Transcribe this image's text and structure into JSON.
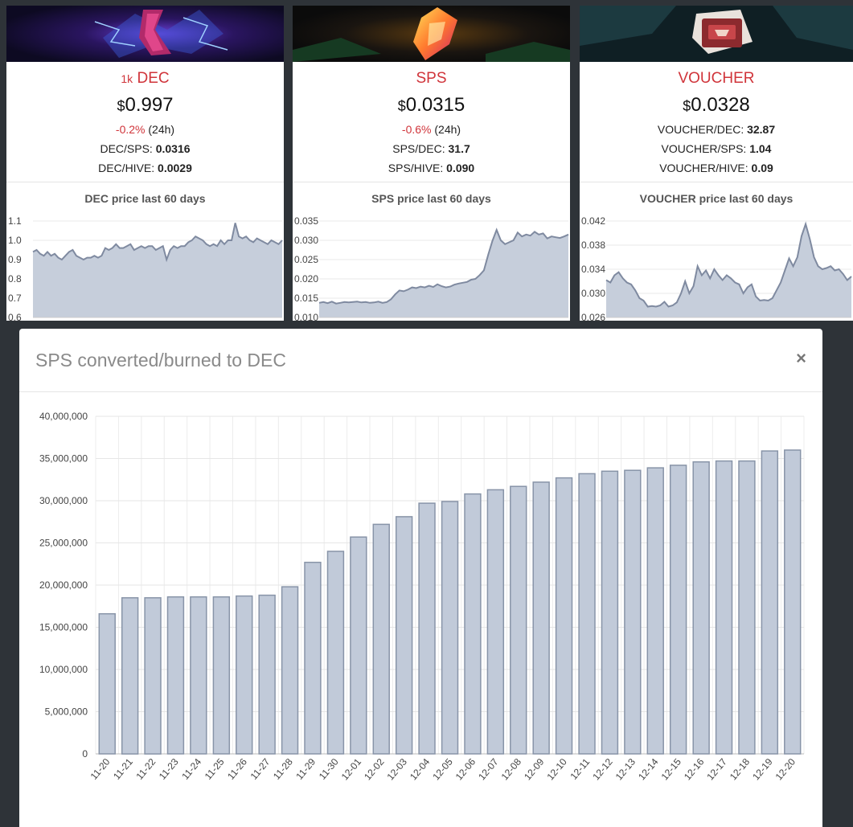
{
  "cards": [
    {
      "prefix": "1k",
      "name": "DEC",
      "currency": "$",
      "price": "0.997",
      "change": "-0.2",
      "change_suffix": "%",
      "period": " (24h)",
      "rows": [
        {
          "label": "DEC/SPS: ",
          "value": "0.0316"
        },
        {
          "label": "DEC/HIVE: ",
          "value": "0.0029"
        }
      ],
      "chart_title": "DEC price last 60 days",
      "ticks": [
        "1.1",
        "1.0",
        "0.9",
        "0.8",
        "0.7",
        "0.6"
      ]
    },
    {
      "prefix": "",
      "name": "SPS",
      "currency": "$",
      "price": "0.0315",
      "change": "-0.6",
      "change_suffix": "%",
      "period": " (24h)",
      "rows": [
        {
          "label": "SPS/DEC: ",
          "value": "31.7"
        },
        {
          "label": "SPS/HIVE: ",
          "value": "0.090"
        }
      ],
      "chart_title": "SPS price last 60 days",
      "ticks": [
        "0.035",
        "0.030",
        "0.025",
        "0.020",
        "0.015",
        "0.010"
      ]
    },
    {
      "prefix": "",
      "name": "VOUCHER",
      "currency": "$",
      "price": "0.0328",
      "change": "",
      "change_suffix": "",
      "period": "",
      "rows": [
        {
          "label": "VOUCHER/DEC: ",
          "value": "32.87"
        },
        {
          "label": "VOUCHER/SPS: ",
          "value": "1.04"
        },
        {
          "label": "VOUCHER/HIVE: ",
          "value": "0.09"
        }
      ],
      "chart_title": "VOUCHER price last 60 days",
      "ticks": [
        "0.042",
        "0.038",
        "0.034",
        "0.030",
        "0.026"
      ]
    }
  ],
  "modal": {
    "title": "SPS converted/burned to DEC",
    "close_label": "×"
  },
  "colors": {
    "accent_red": "#d0343a",
    "bar_fill": "#c1cad9",
    "bar_stroke": "#8894a8",
    "area_fill": "#c6cedb",
    "area_line": "#7f8aa0"
  },
  "chart_data": [
    {
      "type": "area",
      "title": "DEC price last 60 days",
      "ylim": [
        0.6,
        1.1
      ],
      "y_ticks": [
        1.1,
        1.0,
        0.9,
        0.8,
        0.7,
        0.6
      ],
      "values": [
        0.94,
        0.95,
        0.93,
        0.92,
        0.94,
        0.92,
        0.93,
        0.91,
        0.9,
        0.92,
        0.94,
        0.95,
        0.92,
        0.91,
        0.9,
        0.91,
        0.91,
        0.92,
        0.91,
        0.92,
        0.96,
        0.95,
        0.96,
        0.98,
        0.96,
        0.96,
        0.97,
        0.98,
        0.95,
        0.96,
        0.97,
        0.96,
        0.97,
        0.97,
        0.95,
        0.96,
        0.97,
        0.9,
        0.95,
        0.97,
        0.96,
        0.97,
        0.97,
        0.99,
        1.0,
        1.02,
        1.01,
        1.0,
        0.98,
        0.97,
        0.98,
        0.97,
        1.0,
        0.98,
        1.0,
        1.0,
        1.09,
        1.02,
        1.01,
        1.02,
        1.0,
        0.99,
        1.01,
        1.0,
        0.99,
        0.98,
        1.0,
        0.99,
        0.98,
        1.0
      ]
    },
    {
      "type": "area",
      "title": "SPS price last 60 days",
      "ylim": [
        0.01,
        0.035
      ],
      "y_ticks": [
        0.035,
        0.03,
        0.025,
        0.02,
        0.015,
        0.01
      ],
      "values": [
        0.0138,
        0.014,
        0.0137,
        0.0141,
        0.0136,
        0.0138,
        0.014,
        0.0139,
        0.014,
        0.0141,
        0.0139,
        0.014,
        0.0138,
        0.0139,
        0.0141,
        0.0138,
        0.014,
        0.0147,
        0.016,
        0.017,
        0.0168,
        0.0172,
        0.0178,
        0.0176,
        0.018,
        0.0178,
        0.0182,
        0.0179,
        0.0186,
        0.0181,
        0.0178,
        0.018,
        0.0185,
        0.0188,
        0.019,
        0.0192,
        0.0198,
        0.02,
        0.021,
        0.0222,
        0.0262,
        0.0298,
        0.0327,
        0.03,
        0.029,
        0.0295,
        0.03,
        0.032,
        0.031,
        0.0315,
        0.0312,
        0.0322,
        0.0315,
        0.0318,
        0.0305,
        0.031,
        0.0308,
        0.0306,
        0.031,
        0.0315
      ]
    },
    {
      "type": "area",
      "title": "VOUCHER price last 60 days",
      "ylim": [
        0.026,
        0.042
      ],
      "y_ticks": [
        0.042,
        0.038,
        0.034,
        0.03,
        0.026
      ],
      "values": [
        0.0322,
        0.0318,
        0.033,
        0.0335,
        0.0325,
        0.0318,
        0.0315,
        0.0305,
        0.0292,
        0.0288,
        0.0278,
        0.0279,
        0.0278,
        0.028,
        0.0286,
        0.0278,
        0.028,
        0.0285,
        0.03,
        0.032,
        0.03,
        0.0312,
        0.0345,
        0.033,
        0.0338,
        0.0325,
        0.034,
        0.033,
        0.0322,
        0.033,
        0.0325,
        0.0318,
        0.0315,
        0.03,
        0.031,
        0.0315,
        0.0295,
        0.0288,
        0.0289,
        0.0288,
        0.0292,
        0.0305,
        0.0318,
        0.0338,
        0.0358,
        0.0345,
        0.036,
        0.0395,
        0.0415,
        0.039,
        0.036,
        0.0345,
        0.034,
        0.0342,
        0.0345,
        0.0338,
        0.034,
        0.0332,
        0.0322,
        0.0328
      ]
    },
    {
      "type": "bar",
      "title": "SPS converted/burned to DEC",
      "categories": [
        "11-20",
        "11-21",
        "11-22",
        "11-23",
        "11-24",
        "11-25",
        "11-26",
        "11-27",
        "11-28",
        "11-29",
        "11-30",
        "12-01",
        "12-02",
        "12-03",
        "12-04",
        "12-05",
        "12-06",
        "12-07",
        "12-08",
        "12-09",
        "12-10",
        "12-11",
        "12-12",
        "12-13",
        "12-14",
        "12-15",
        "12-16",
        "12-17",
        "12-18",
        "12-19",
        "12-20"
      ],
      "values": [
        16600000,
        18500000,
        18500000,
        18600000,
        18600000,
        18600000,
        18700000,
        18800000,
        19800000,
        22700000,
        24000000,
        25700000,
        27200000,
        28100000,
        29700000,
        29900000,
        30800000,
        31300000,
        31700000,
        32200000,
        32700000,
        33200000,
        33500000,
        33600000,
        33900000,
        34200000,
        34600000,
        34700000,
        34700000,
        35900000,
        36000000
      ],
      "y_ticks": [
        "40,000,000",
        "35,000,000",
        "30,000,000",
        "25,000,000",
        "20,000,000",
        "15,000,000",
        "10,000,000",
        "5,000,000",
        "0"
      ],
      "ylim": [
        0,
        40000000
      ],
      "grid": true
    }
  ]
}
